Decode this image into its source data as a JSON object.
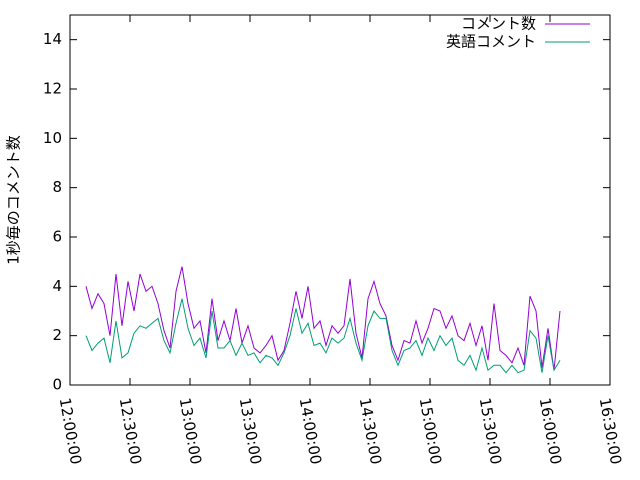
{
  "chart_data": {
    "type": "line",
    "y_label": "1秒毎のコメント数",
    "x": [
      "12:08:00",
      "12:11:00",
      "12:14:00",
      "12:17:00",
      "12:20:00",
      "12:23:00",
      "12:26:00",
      "12:29:00",
      "12:32:00",
      "12:35:00",
      "12:38:00",
      "12:41:00",
      "12:44:00",
      "12:47:00",
      "12:50:00",
      "12:53:00",
      "12:56:00",
      "12:59:00",
      "13:02:00",
      "13:05:00",
      "13:08:00",
      "13:11:00",
      "13:14:00",
      "13:17:00",
      "13:20:00",
      "13:23:00",
      "13:26:00",
      "13:29:00",
      "13:32:00",
      "13:35:00",
      "13:38:00",
      "13:41:00",
      "13:44:00",
      "13:47:00",
      "13:50:00",
      "13:53:00",
      "13:56:00",
      "13:59:00",
      "14:02:00",
      "14:05:00",
      "14:08:00",
      "14:11:00",
      "14:14:00",
      "14:17:00",
      "14:20:00",
      "14:23:00",
      "14:26:00",
      "14:29:00",
      "14:32:00",
      "14:35:00",
      "14:38:00",
      "14:41:00",
      "14:44:00",
      "14:47:00",
      "14:50:00",
      "14:53:00",
      "14:56:00",
      "14:59:00",
      "15:02:00",
      "15:05:00",
      "15:08:00",
      "15:11:00",
      "15:14:00",
      "15:17:00",
      "15:20:00",
      "15:23:00",
      "15:26:00",
      "15:29:00",
      "15:32:00",
      "15:35:00",
      "15:38:00",
      "15:41:00",
      "15:44:00",
      "15:47:00",
      "15:50:00",
      "15:53:00",
      "15:56:00",
      "15:59:00",
      "16:02:00",
      "16:05:00"
    ],
    "series": [
      {
        "name": "コメント数",
        "color": "#9400d3",
        "values": [
          4.0,
          3.1,
          3.7,
          3.3,
          2.0,
          4.5,
          2.4,
          4.2,
          3.0,
          4.5,
          3.8,
          4.0,
          3.3,
          2.2,
          1.5,
          3.8,
          4.8,
          3.3,
          2.3,
          2.6,
          1.3,
          3.5,
          1.8,
          2.6,
          1.8,
          3.1,
          1.7,
          2.4,
          1.5,
          1.3,
          1.6,
          2.0,
          1.0,
          1.4,
          2.5,
          3.8,
          2.7,
          4.0,
          2.3,
          2.6,
          1.6,
          2.4,
          2.1,
          2.4,
          4.3,
          2.1,
          1.1,
          3.5,
          4.2,
          3.3,
          2.8,
          1.6,
          1.0,
          1.8,
          1.7,
          2.6,
          1.7,
          2.3,
          3.1,
          3.0,
          2.3,
          2.8,
          2.0,
          1.8,
          2.5,
          1.6,
          2.4,
          1.0,
          3.3,
          1.4,
          1.2,
          0.9,
          1.5,
          0.8,
          3.6,
          3.0,
          0.7,
          2.3,
          0.6,
          3.0
        ]
      },
      {
        "name": "英語コメント",
        "color": "#009e73",
        "values": [
          2.0,
          1.4,
          1.7,
          1.9,
          0.9,
          2.6,
          1.1,
          1.3,
          2.1,
          2.4,
          2.3,
          2.5,
          2.7,
          1.8,
          1.3,
          2.5,
          3.5,
          2.3,
          1.6,
          1.9,
          1.1,
          3.0,
          1.5,
          1.5,
          1.8,
          1.2,
          1.7,
          1.2,
          1.3,
          0.9,
          1.2,
          1.1,
          0.8,
          1.3,
          2.0,
          3.1,
          2.1,
          2.5,
          1.6,
          1.7,
          1.3,
          1.9,
          1.7,
          1.9,
          2.7,
          1.7,
          1.0,
          2.4,
          3.0,
          2.7,
          2.7,
          1.4,
          0.8,
          1.4,
          1.5,
          1.8,
          1.2,
          1.9,
          1.4,
          2.0,
          1.6,
          1.9,
          1.0,
          0.8,
          1.2,
          0.6,
          1.5,
          0.6,
          0.8,
          0.8,
          0.5,
          0.8,
          0.5,
          0.6,
          2.2,
          1.9,
          0.5,
          2.0,
          0.6,
          1.0
        ]
      }
    ],
    "xlim": [
      "12:00:00",
      "16:30:00"
    ],
    "xticks": [
      "12:00:00",
      "12:30:00",
      "13:00:00",
      "13:30:00",
      "14:00:00",
      "14:30:00",
      "15:00:00",
      "15:30:00",
      "16:00:00",
      "16:30:00"
    ],
    "ylim": [
      0,
      15
    ],
    "yticks": [
      0,
      2,
      4,
      6,
      8,
      10,
      12,
      14
    ],
    "legend": "top right"
  }
}
